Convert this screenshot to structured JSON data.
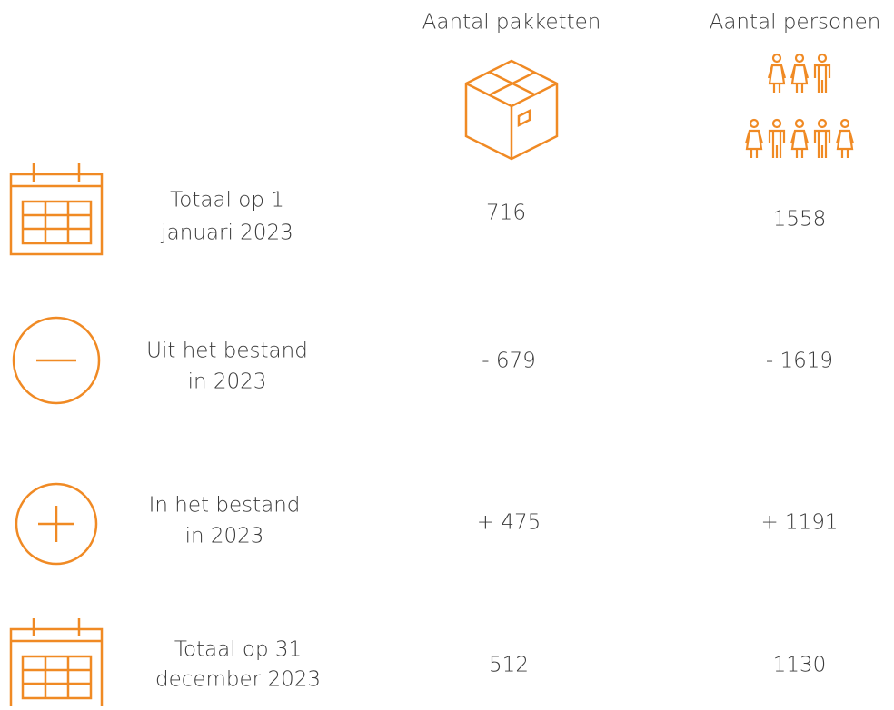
{
  "header": {
    "columns": [
      "Aantal pakketten",
      "Aantal personen"
    ]
  },
  "rows": [
    {
      "label": [
        "Totaal op 1",
        "januari 2023"
      ],
      "values": [
        "716",
        "1558"
      ]
    },
    {
      "label": [
        "Uit het bestand",
        "in 2023"
      ],
      "values": [
        "- 679",
        "- 1619"
      ]
    },
    {
      "label": [
        "In het bestand",
        "in 2023"
      ],
      "values": [
        "+ 475",
        "+ 1191"
      ]
    },
    {
      "label": [
        "Totaal op 31",
        "december 2023"
      ],
      "values": [
        "512",
        "1130"
      ]
    }
  ]
}
